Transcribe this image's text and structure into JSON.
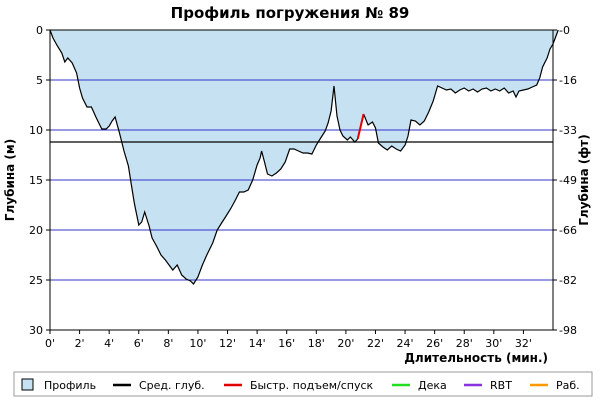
{
  "chart_data": {
    "type": "area",
    "title": "Профиль погружения № 89",
    "xlabel": "Длительность (мин.)",
    "ylabel_left": "Глубина (м)",
    "ylabel_right": "Глубина (фт)",
    "xlim": [
      0,
      34
    ],
    "ylim": [
      0,
      30
    ],
    "y_inverted": true,
    "x_ticks": [
      0,
      2,
      4,
      6,
      8,
      10,
      12,
      14,
      16,
      18,
      20,
      22,
      24,
      26,
      28,
      30,
      32
    ],
    "x_tick_labels": [
      "0'",
      "2'",
      "4'",
      "6'",
      "8'",
      "10'",
      "12'",
      "14'",
      "16'",
      "18'",
      "20'",
      "22'",
      "24'",
      "26'",
      "28'",
      "30'",
      "32'"
    ],
    "y_ticks_left": [
      0,
      5,
      10,
      15,
      20,
      25,
      30
    ],
    "y_tick_labels_left": [
      "0",
      "5",
      "10",
      "15",
      "20",
      "25",
      "30"
    ],
    "y_ticks_right_m": [
      0,
      5,
      10,
      15,
      20,
      25,
      30
    ],
    "y_tick_labels_right": [
      "0",
      "16",
      "33",
      "49",
      "66",
      "82",
      "98"
    ],
    "avg_depth": 11.2,
    "colors": {
      "fill": "#c6e2f2",
      "profile": "#000000",
      "grid": "#3333cc",
      "avg": "#000000",
      "ascent": "#e00000",
      "deco": "#22dd22",
      "rbt": "#8833dd",
      "work": "#ff9900"
    },
    "profile": [
      [
        0.0,
        0.0
      ],
      [
        0.2,
        0.8
      ],
      [
        0.5,
        1.6
      ],
      [
        0.8,
        2.3
      ],
      [
        1.0,
        3.2
      ],
      [
        1.2,
        2.8
      ],
      [
        1.5,
        3.3
      ],
      [
        1.8,
        4.3
      ],
      [
        2.0,
        5.8
      ],
      [
        2.2,
        6.8
      ],
      [
        2.5,
        7.7
      ],
      [
        2.8,
        7.7
      ],
      [
        3.1,
        8.7
      ],
      [
        3.3,
        9.3
      ],
      [
        3.5,
        9.9
      ],
      [
        3.8,
        9.9
      ],
      [
        4.0,
        9.6
      ],
      [
        4.2,
        9.1
      ],
      [
        4.4,
        8.7
      ],
      [
        4.7,
        10.3
      ],
      [
        5.0,
        12.1
      ],
      [
        5.3,
        13.6
      ],
      [
        5.5,
        15.5
      ],
      [
        5.7,
        17.3
      ],
      [
        6.0,
        19.5
      ],
      [
        6.2,
        19.2
      ],
      [
        6.4,
        18.2
      ],
      [
        6.7,
        19.6
      ],
      [
        6.9,
        20.8
      ],
      [
        7.2,
        21.6
      ],
      [
        7.5,
        22.5
      ],
      [
        7.8,
        23.0
      ],
      [
        8.1,
        23.6
      ],
      [
        8.3,
        24.0
      ],
      [
        8.6,
        23.5
      ],
      [
        8.9,
        24.5
      ],
      [
        9.2,
        24.9
      ],
      [
        9.5,
        25.1
      ],
      [
        9.7,
        25.4
      ],
      [
        10.0,
        24.7
      ],
      [
        10.3,
        23.5
      ],
      [
        10.6,
        22.5
      ],
      [
        11.0,
        21.3
      ],
      [
        11.3,
        20.0
      ],
      [
        11.6,
        19.3
      ],
      [
        11.9,
        18.6
      ],
      [
        12.2,
        17.9
      ],
      [
        12.5,
        17.1
      ],
      [
        12.8,
        16.2
      ],
      [
        13.1,
        16.2
      ],
      [
        13.4,
        16.0
      ],
      [
        13.7,
        15.0
      ],
      [
        14.0,
        13.5
      ],
      [
        14.2,
        12.8
      ],
      [
        14.3,
        12.1
      ],
      [
        14.5,
        13.2
      ],
      [
        14.7,
        14.4
      ],
      [
        15.0,
        14.6
      ],
      [
        15.3,
        14.3
      ],
      [
        15.6,
        13.9
      ],
      [
        15.9,
        13.2
      ],
      [
        16.2,
        11.9
      ],
      [
        16.5,
        11.9
      ],
      [
        16.8,
        12.1
      ],
      [
        17.1,
        12.3
      ],
      [
        17.4,
        12.3
      ],
      [
        17.7,
        12.4
      ],
      [
        18.0,
        11.5
      ],
      [
        18.3,
        10.8
      ],
      [
        18.6,
        10.1
      ],
      [
        18.8,
        9.3
      ],
      [
        19.0,
        8.1
      ],
      [
        19.2,
        5.6
      ],
      [
        19.4,
        8.6
      ],
      [
        19.6,
        10.0
      ],
      [
        19.8,
        10.6
      ],
      [
        20.1,
        11.0
      ],
      [
        20.3,
        10.7
      ],
      [
        20.6,
        11.2
      ],
      [
        20.8,
        10.9
      ]
    ],
    "ascent_segment": [
      [
        20.8,
        10.9
      ],
      [
        21.2,
        8.4
      ]
    ],
    "profile_after": [
      [
        21.2,
        8.4
      ],
      [
        21.5,
        9.5
      ],
      [
        21.8,
        9.2
      ],
      [
        22.0,
        9.8
      ],
      [
        22.2,
        11.3
      ],
      [
        22.5,
        11.7
      ],
      [
        22.8,
        12.0
      ],
      [
        23.1,
        11.6
      ],
      [
        23.4,
        11.9
      ],
      [
        23.7,
        12.1
      ],
      [
        24.0,
        11.5
      ],
      [
        24.2,
        10.6
      ],
      [
        24.4,
        9.0
      ],
      [
        24.7,
        9.1
      ],
      [
        25.0,
        9.5
      ],
      [
        25.3,
        9.1
      ],
      [
        25.6,
        8.2
      ],
      [
        25.9,
        7.1
      ],
      [
        26.2,
        5.6
      ],
      [
        26.5,
        5.8
      ],
      [
        26.8,
        6.0
      ],
      [
        27.1,
        5.9
      ],
      [
        27.4,
        6.3
      ],
      [
        27.7,
        6.0
      ],
      [
        28.0,
        5.8
      ],
      [
        28.3,
        6.1
      ],
      [
        28.6,
        5.9
      ],
      [
        28.9,
        6.2
      ],
      [
        29.2,
        5.9
      ],
      [
        29.5,
        5.8
      ],
      [
        29.8,
        6.1
      ],
      [
        30.1,
        5.9
      ],
      [
        30.4,
        6.1
      ],
      [
        30.7,
        5.8
      ],
      [
        31.0,
        6.3
      ],
      [
        31.3,
        6.1
      ],
      [
        31.5,
        6.7
      ],
      [
        31.7,
        6.1
      ],
      [
        32.0,
        6.0
      ],
      [
        32.3,
        5.9
      ],
      [
        32.6,
        5.7
      ],
      [
        32.9,
        5.5
      ],
      [
        33.1,
        4.8
      ],
      [
        33.3,
        3.7
      ],
      [
        33.6,
        2.8
      ],
      [
        33.8,
        1.9
      ],
      [
        34.0,
        1.4
      ],
      [
        34.2,
        0.6
      ],
      [
        34.35,
        0.0
      ]
    ],
    "legend": [
      {
        "label": "Профиль",
        "kind": "box",
        "color_key": "fill"
      },
      {
        "label": "Сред. глуб.",
        "kind": "line",
        "color_key": "avg"
      },
      {
        "label": "Быстр. подъем/спуск",
        "kind": "line",
        "color_key": "ascent"
      },
      {
        "label": "Дека",
        "kind": "line",
        "color_key": "deco"
      },
      {
        "label": "RBT",
        "kind": "line",
        "color_key": "rbt"
      },
      {
        "label": "Раб.",
        "kind": "line",
        "color_key": "work"
      }
    ]
  }
}
